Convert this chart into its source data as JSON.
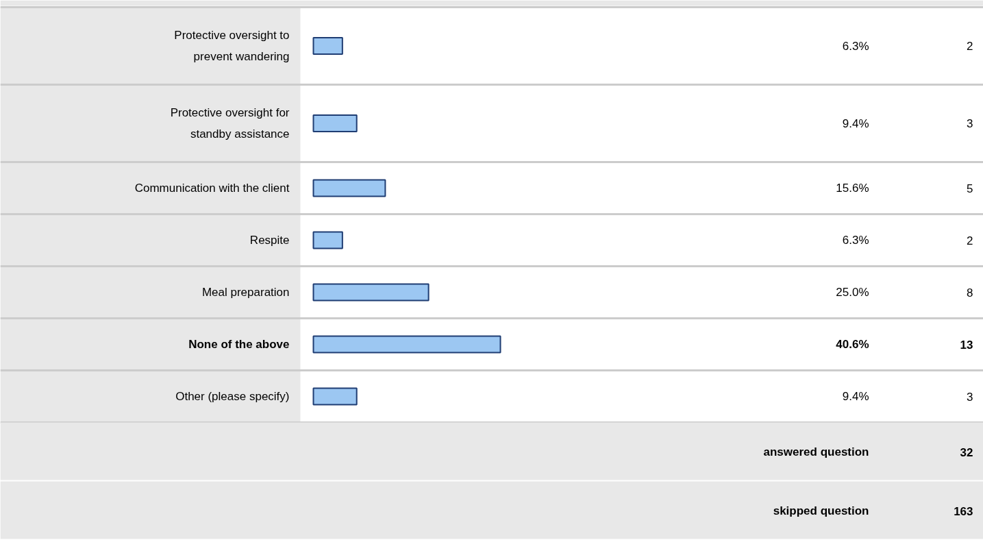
{
  "chart_data": {
    "type": "bar",
    "orientation": "horizontal",
    "color": "#9cc7f2",
    "categories": [
      "Protective oversight to prevent wandering",
      "Protective oversight for standby assistance",
      "Communication with the client",
      "Respite",
      "Meal preparation",
      "None of the above",
      "Other (please specify)"
    ],
    "values": [
      6.3,
      9.4,
      15.6,
      6.3,
      25.0,
      40.6,
      9.4
    ],
    "value_labels": [
      "6.3%",
      "9.4%",
      "15.6%",
      "6.3%",
      "25.0%",
      "40.6%",
      "9.4%"
    ],
    "annotations": [
      "2",
      "3",
      "5",
      "2",
      "8",
      "13",
      "3",
      "answered question",
      "32",
      "skipped question",
      "163"
    ]
  }
}
